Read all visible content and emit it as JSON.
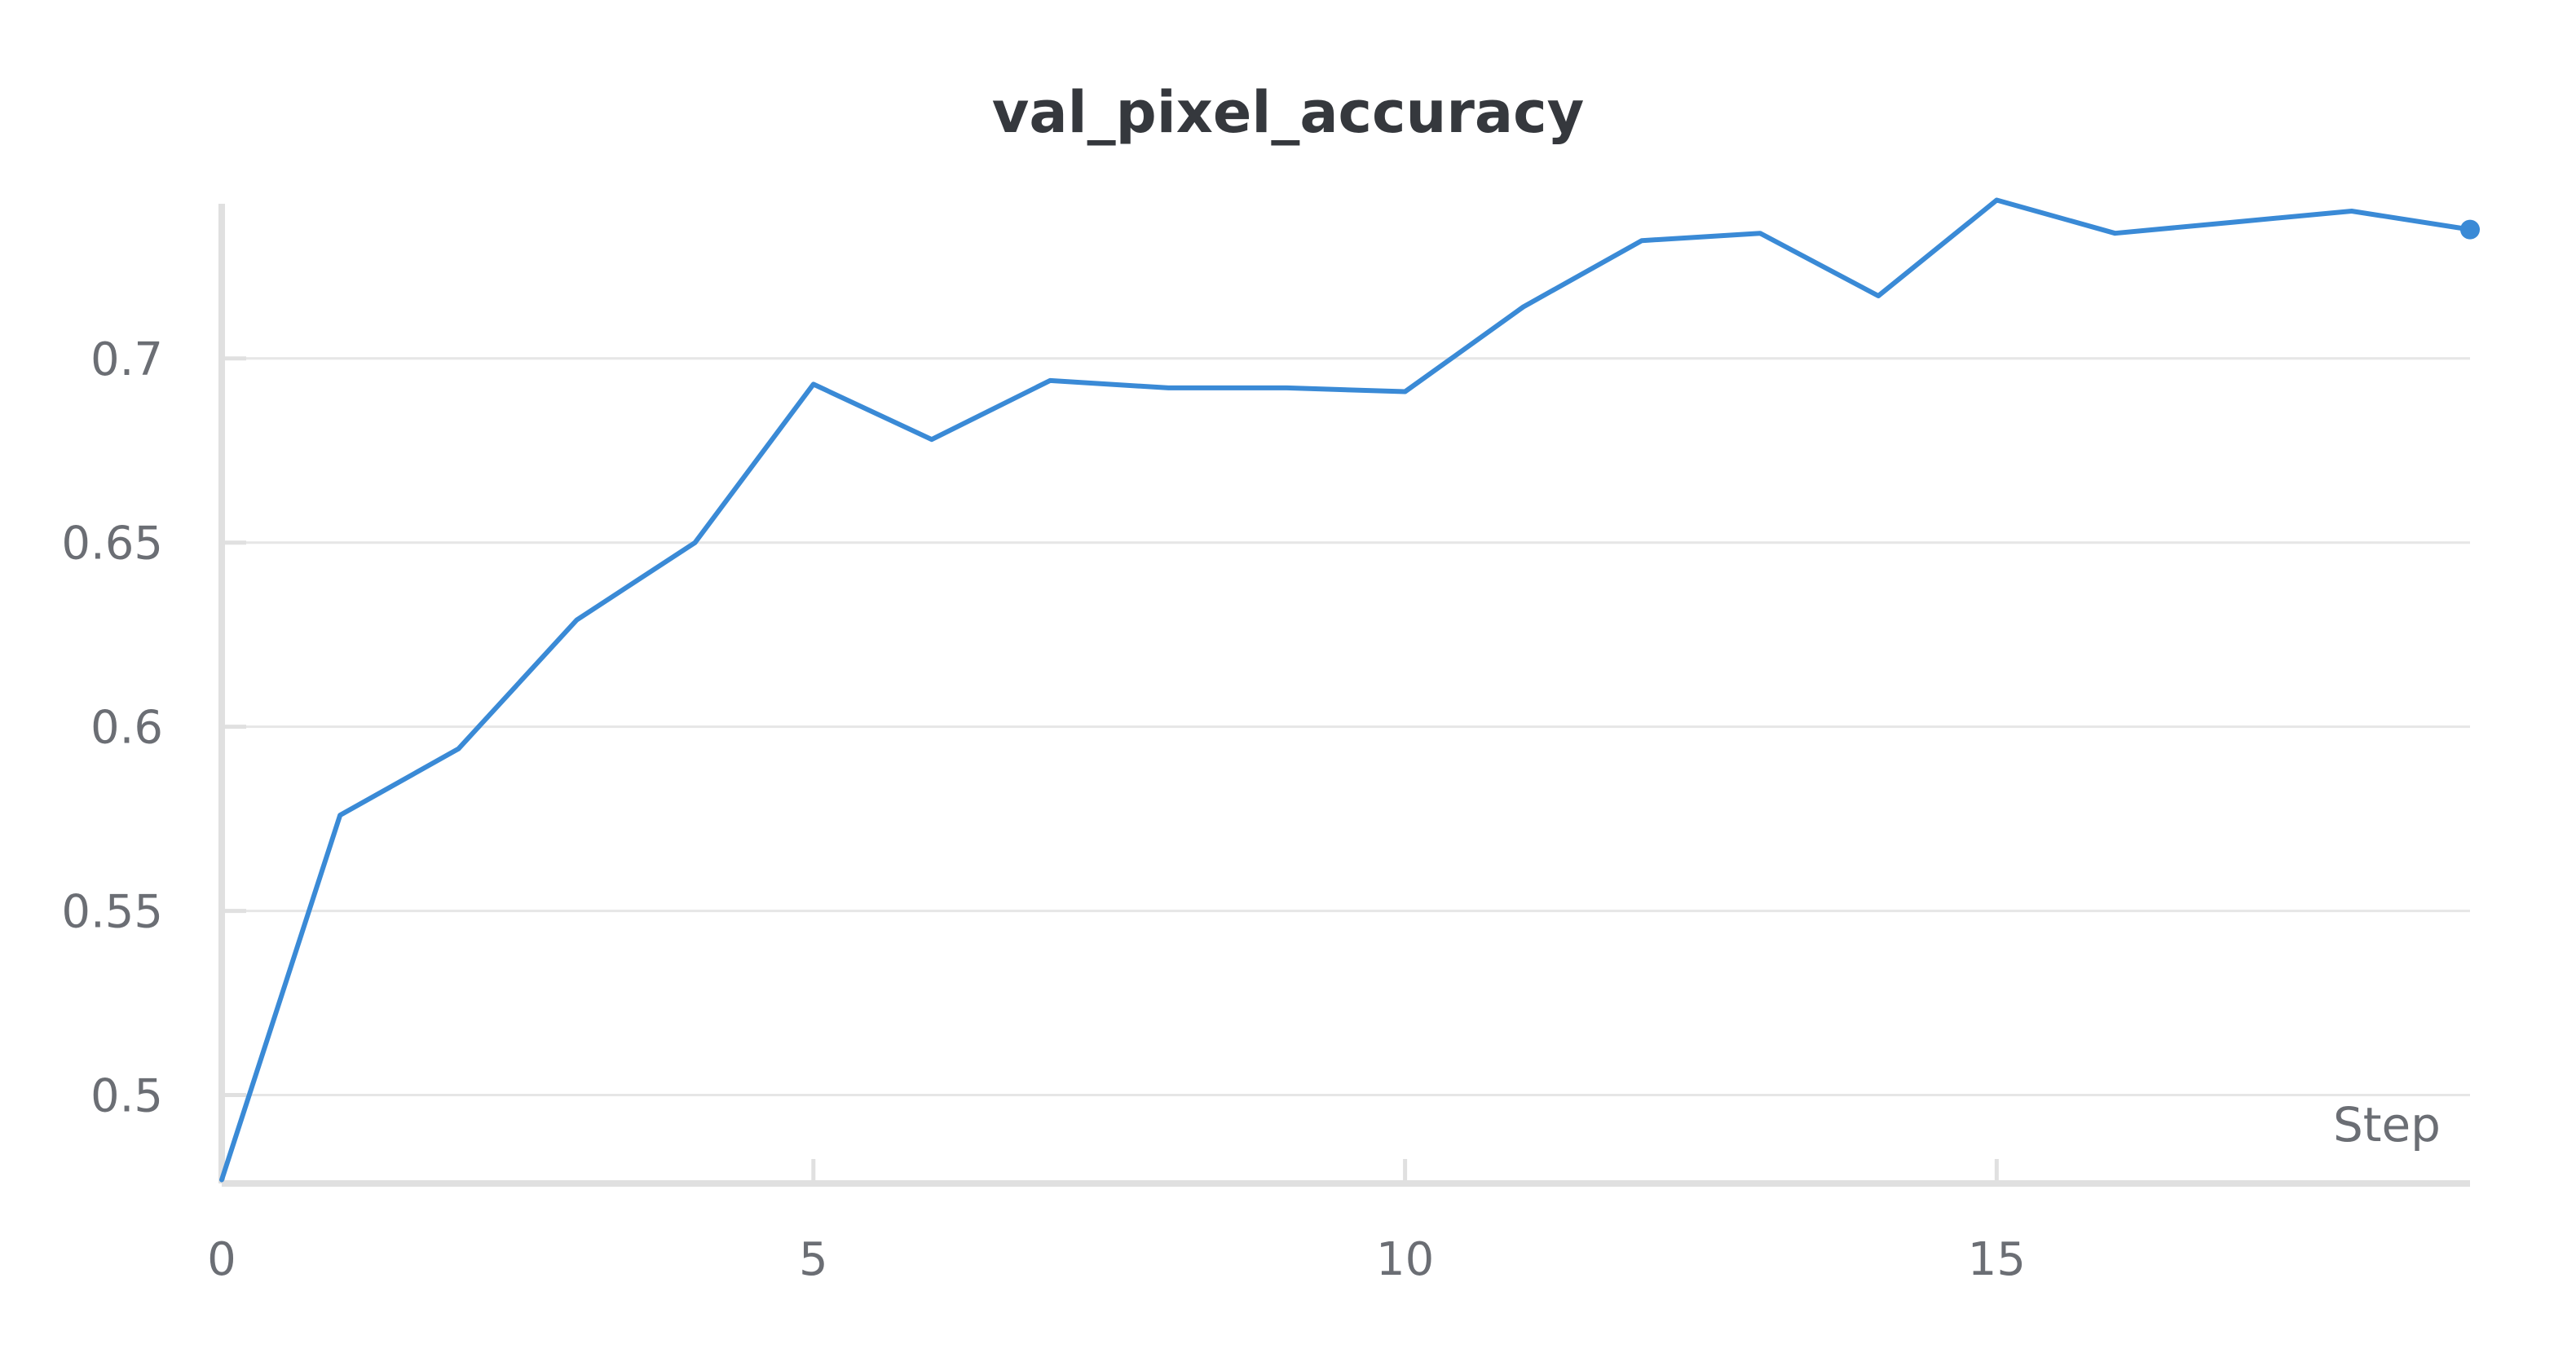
{
  "chart_data": {
    "type": "line",
    "title": "val_pixel_accuracy",
    "xlabel": "Step",
    "ylabel": "",
    "xlim": [
      0,
      19
    ],
    "ylim": [
      0.476,
      0.742
    ],
    "x_ticks": [
      0,
      5,
      10,
      15
    ],
    "y_ticks": [
      0.5,
      0.55,
      0.6,
      0.65,
      0.7
    ],
    "y_tick_labels": [
      "0.5",
      "0.55",
      "0.6",
      "0.65",
      "0.7"
    ],
    "grid": "horizontal",
    "legend": "none",
    "series": [
      {
        "color": "#3a8ad6",
        "x": [
          0,
          1,
          2,
          3,
          4,
          5,
          6,
          7,
          8,
          9,
          10,
          11,
          12,
          13,
          14,
          15,
          16,
          17,
          18,
          19
        ],
        "y": [
          0.477,
          0.576,
          0.594,
          0.629,
          0.65,
          0.693,
          0.678,
          0.694,
          0.692,
          0.692,
          0.691,
          0.714,
          0.732,
          0.734,
          0.717,
          0.743,
          0.734,
          0.737,
          0.74,
          0.735
        ]
      }
    ]
  }
}
